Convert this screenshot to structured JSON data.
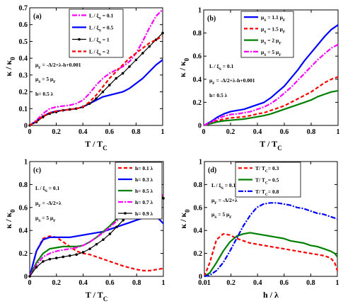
{
  "chart_data": [
    {
      "type": "line",
      "panel": "(a)",
      "xlabel": "T / T_C",
      "ylabel": "κ / κ_0",
      "xlim": [
        0,
        1
      ],
      "ylim": [
        0,
        0.7
      ],
      "xticks": [
        "0",
        "0.2",
        "0.4",
        "0.6",
        "0.8",
        "1"
      ],
      "yticks": [
        "0",
        "0.1",
        "0.2",
        "0.3",
        "0.4",
        "0.5",
        "0.6",
        "0.7"
      ],
      "legend_position": "top-center",
      "annotations": [
        "μ_F = -Δ/2+λ-h+0.001",
        "μ_S = 5 μ_F",
        "h= 0.5 λ"
      ],
      "series": [
        {
          "name": "L / ξ_S = 0.1",
          "color": "#ff00ff",
          "style": "dashdot",
          "x": [
            0,
            0.05,
            0.1,
            0.15,
            0.2,
            0.25,
            0.3,
            0.35,
            0.4,
            0.45,
            0.5,
            0.55,
            0.6,
            0.65,
            0.7,
            0.75,
            0.8,
            0.85,
            0.9,
            0.95,
            1.0
          ],
          "y": [
            0,
            0.03,
            0.07,
            0.1,
            0.11,
            0.115,
            0.12,
            0.13,
            0.15,
            0.19,
            0.24,
            0.28,
            0.31,
            0.33,
            0.35,
            0.38,
            0.43,
            0.5,
            0.58,
            0.65,
            0.69
          ]
        },
        {
          "name": "L / ξ_S = 0.5",
          "color": "#0000ff",
          "style": "solid",
          "x": [
            0,
            0.05,
            0.1,
            0.15,
            0.2,
            0.25,
            0.3,
            0.35,
            0.4,
            0.45,
            0.5,
            0.55,
            0.6,
            0.65,
            0.7,
            0.75,
            0.8,
            0.85,
            0.9,
            0.95,
            1.0
          ],
          "y": [
            0,
            0.025,
            0.055,
            0.075,
            0.085,
            0.09,
            0.095,
            0.1,
            0.11,
            0.13,
            0.15,
            0.17,
            0.18,
            0.19,
            0.2,
            0.22,
            0.25,
            0.28,
            0.32,
            0.36,
            0.39
          ]
        },
        {
          "name": "L / ξ_S = 1",
          "color": "#000000",
          "style": "solid-dots",
          "x": [
            0,
            0.05,
            0.1,
            0.15,
            0.2,
            0.25,
            0.3,
            0.35,
            0.4,
            0.45,
            0.5,
            0.55,
            0.6,
            0.65,
            0.7,
            0.75,
            0.8,
            0.85,
            0.9,
            0.95,
            1.0
          ],
          "y": [
            0,
            0.02,
            0.05,
            0.07,
            0.08,
            0.09,
            0.095,
            0.1,
            0.11,
            0.13,
            0.16,
            0.2,
            0.24,
            0.28,
            0.31,
            0.35,
            0.39,
            0.43,
            0.47,
            0.51,
            0.55
          ]
        },
        {
          "name": "L / ξ_S = 2",
          "color": "#ff0000",
          "style": "dashed",
          "x": [
            0,
            0.05,
            0.1,
            0.15,
            0.2,
            0.25,
            0.3,
            0.35,
            0.4,
            0.45,
            0.5,
            0.55,
            0.6,
            0.65,
            0.7,
            0.75,
            0.8,
            0.85,
            0.9,
            0.95,
            1.0
          ],
          "y": [
            0,
            0.025,
            0.055,
            0.075,
            0.085,
            0.09,
            0.095,
            0.1,
            0.11,
            0.14,
            0.18,
            0.23,
            0.28,
            0.32,
            0.36,
            0.4,
            0.43,
            0.46,
            0.49,
            0.51,
            0.53
          ]
        }
      ]
    },
    {
      "type": "line",
      "panel": "(b)",
      "xlabel": "T / T_C",
      "ylabel": "κ / κ_0",
      "xlim": [
        0,
        1
      ],
      "ylim": [
        0,
        1
      ],
      "xticks": [
        "0",
        "0.2",
        "0.4",
        "0.6",
        "0.8",
        "1"
      ],
      "yticks": [
        "0",
        "0.2",
        "0.4",
        "0.6",
        "0.8",
        "1"
      ],
      "legend_position": "top-center",
      "annotations": [
        "L / ξ_S = 0.1",
        "μ_F = -Δ/2+λ-h+0.001",
        "h= 0.5 λ"
      ],
      "series": [
        {
          "name": "μ_S = 1.1 μ_F",
          "color": "#0000ff",
          "style": "solid",
          "x": [
            0,
            0.05,
            0.1,
            0.15,
            0.2,
            0.25,
            0.3,
            0.35,
            0.4,
            0.45,
            0.5,
            0.55,
            0.6,
            0.65,
            0.7,
            0.75,
            0.8,
            0.85,
            0.9,
            0.95,
            1.0
          ],
          "y": [
            0,
            0.03,
            0.07,
            0.1,
            0.12,
            0.13,
            0.14,
            0.16,
            0.18,
            0.2,
            0.24,
            0.29,
            0.34,
            0.41,
            0.48,
            0.56,
            0.63,
            0.7,
            0.77,
            0.83,
            0.87
          ]
        },
        {
          "name": "μ_S = 1.5 μ_F",
          "color": "#ff0000",
          "style": "dashed",
          "x": [
            0,
            0.05,
            0.1,
            0.15,
            0.2,
            0.25,
            0.3,
            0.35,
            0.4,
            0.45,
            0.5,
            0.55,
            0.6,
            0.65,
            0.7,
            0.75,
            0.8,
            0.85,
            0.9,
            0.95,
            1.0
          ],
          "y": [
            0,
            0.02,
            0.04,
            0.055,
            0.065,
            0.07,
            0.075,
            0.085,
            0.1,
            0.11,
            0.13,
            0.15,
            0.17,
            0.2,
            0.23,
            0.26,
            0.29,
            0.33,
            0.37,
            0.4,
            0.42
          ]
        },
        {
          "name": "μ_S = 2 μ_F",
          "color": "#008000",
          "style": "solid",
          "x": [
            0,
            0.05,
            0.1,
            0.15,
            0.2,
            0.25,
            0.3,
            0.35,
            0.4,
            0.45,
            0.5,
            0.55,
            0.6,
            0.65,
            0.7,
            0.75,
            0.8,
            0.85,
            0.9,
            0.95,
            1.0
          ],
          "y": [
            0,
            0.015,
            0.03,
            0.04,
            0.045,
            0.05,
            0.055,
            0.065,
            0.075,
            0.085,
            0.1,
            0.12,
            0.14,
            0.16,
            0.18,
            0.2,
            0.22,
            0.25,
            0.27,
            0.29,
            0.3
          ]
        },
        {
          "name": "μ_S = 5 μ_F",
          "color": "#ff00ff",
          "style": "dashdot",
          "x": [
            0,
            0.05,
            0.1,
            0.15,
            0.2,
            0.25,
            0.3,
            0.35,
            0.4,
            0.45,
            0.5,
            0.55,
            0.6,
            0.65,
            0.7,
            0.75,
            0.8,
            0.85,
            0.9,
            0.95,
            1.0
          ],
          "y": [
            0,
            0.025,
            0.055,
            0.08,
            0.095,
            0.1,
            0.11,
            0.12,
            0.14,
            0.16,
            0.19,
            0.23,
            0.28,
            0.33,
            0.39,
            0.45,
            0.51,
            0.57,
            0.62,
            0.67,
            0.7
          ]
        }
      ]
    },
    {
      "type": "line",
      "panel": "(c)",
      "xlabel": "T / T_C",
      "ylabel": "κ / κ_0",
      "xlim": [
        0,
        1
      ],
      "ylim": [
        0,
        1
      ],
      "xticks": [
        "0",
        "0.2",
        "0.4",
        "0.6",
        "0.8",
        "1"
      ],
      "yticks": [
        "0",
        "0.2",
        "0.4",
        "0.6",
        "0.8",
        "1"
      ],
      "legend_position": "top-right",
      "annotations": [
        "L / ξ_S = 0.1",
        "μ_F = -Δ/2+λ",
        "μ_S = 5 μ_F"
      ],
      "series": [
        {
          "name": "h= 0.1 λ",
          "color": "#ff0000",
          "style": "dashed",
          "x": [
            0,
            0.05,
            0.1,
            0.15,
            0.2,
            0.25,
            0.3,
            0.35,
            0.4,
            0.45,
            0.5,
            0.55,
            0.6,
            0.65,
            0.7,
            0.75,
            0.8,
            0.85,
            0.9,
            0.95,
            1.0
          ],
          "y": [
            0,
            0.22,
            0.33,
            0.35,
            0.34,
            0.3,
            0.26,
            0.22,
            0.2,
            0.19,
            0.17,
            0.15,
            0.13,
            0.11,
            0.09,
            0.075,
            0.06,
            0.05,
            0.05,
            0.06,
            0.07
          ]
        },
        {
          "name": "h= 0.3 λ",
          "color": "#0000ff",
          "style": "solid",
          "x": [
            0,
            0.05,
            0.1,
            0.15,
            0.2,
            0.25,
            0.3,
            0.35,
            0.4,
            0.45,
            0.5,
            0.55,
            0.6,
            0.65,
            0.7,
            0.75,
            0.8,
            0.85,
            0.9,
            0.95,
            1.0
          ],
          "y": [
            0,
            0.22,
            0.32,
            0.34,
            0.34,
            0.34,
            0.34,
            0.35,
            0.36,
            0.37,
            0.38,
            0.39,
            0.41,
            0.43,
            0.45,
            0.47,
            0.49,
            0.51,
            0.52,
            0.52,
            0.46
          ]
        },
        {
          "name": "h= 0.5 λ",
          "color": "#008000",
          "style": "solid",
          "x": [
            0,
            0.05,
            0.1,
            0.15,
            0.2,
            0.25,
            0.3,
            0.35,
            0.4,
            0.45,
            0.5,
            0.55,
            0.6,
            0.65,
            0.7,
            0.75,
            0.8,
            0.85,
            0.9,
            0.95,
            1.0
          ],
          "y": [
            0,
            0.12,
            0.2,
            0.24,
            0.25,
            0.26,
            0.26,
            0.26,
            0.27,
            0.3,
            0.34,
            0.39,
            0.44,
            0.5,
            0.56,
            0.62,
            0.66,
            0.7,
            0.73,
            0.73,
            0.69
          ]
        },
        {
          "name": "h= 0.7 λ",
          "color": "#ff00ff",
          "style": "dashdot",
          "x": [
            0,
            0.05,
            0.1,
            0.15,
            0.2,
            0.25,
            0.3,
            0.35,
            0.4,
            0.45,
            0.5,
            0.55,
            0.6,
            0.65,
            0.7,
            0.75,
            0.8,
            0.85,
            0.9,
            0.95,
            1.0
          ],
          "y": [
            0,
            0.1,
            0.17,
            0.2,
            0.22,
            0.23,
            0.24,
            0.25,
            0.27,
            0.3,
            0.34,
            0.38,
            0.43,
            0.48,
            0.54,
            0.6,
            0.65,
            0.7,
            0.74,
            0.75,
            0.7
          ]
        },
        {
          "name": "h= 0.9 λ",
          "color": "#000000",
          "style": "solid-dots",
          "x": [
            0,
            0.05,
            0.1,
            0.15,
            0.2,
            0.25,
            0.3,
            0.35,
            0.4,
            0.45,
            0.5,
            0.55,
            0.6,
            0.65,
            0.7,
            0.75,
            0.8,
            0.85,
            0.9,
            0.95,
            1.0
          ],
          "y": [
            0,
            0.08,
            0.13,
            0.15,
            0.16,
            0.17,
            0.18,
            0.19,
            0.21,
            0.24,
            0.28,
            0.32,
            0.37,
            0.43,
            0.49,
            0.55,
            0.6,
            0.65,
            0.69,
            0.71,
            0.68
          ]
        }
      ]
    },
    {
      "type": "line",
      "panel": "(d)",
      "xlabel": "h / λ",
      "ylabel": "κ / κ_0",
      "xlim": [
        0.01,
        1
      ],
      "ylim": [
        0,
        1
      ],
      "xticks": [
        "0.01",
        "0.2",
        "0.4",
        "0.6",
        "0.8",
        "1"
      ],
      "yticks": [
        "0",
        "0.2",
        "0.4",
        "0.6",
        "0.8",
        "1"
      ],
      "legend_position": "top-right",
      "annotations": [
        "L / ξ_S = 0.1",
        "μ_F = -Δ/2+λ",
        "μ_S = 5 μ_F"
      ],
      "series": [
        {
          "name": "T/ T_C= 0.3",
          "color": "#ff0000",
          "style": "dashed",
          "x": [
            0.01,
            0.05,
            0.1,
            0.15,
            0.2,
            0.25,
            0.3,
            0.35,
            0.4,
            0.45,
            0.5,
            0.55,
            0.6,
            0.65,
            0.7,
            0.75,
            0.8,
            0.85,
            0.9,
            0.95,
            0.98,
            1.0
          ],
          "y": [
            0,
            0.12,
            0.32,
            0.37,
            0.36,
            0.33,
            0.31,
            0.29,
            0.28,
            0.27,
            0.26,
            0.25,
            0.24,
            0.23,
            0.22,
            0.21,
            0.2,
            0.19,
            0.18,
            0.16,
            0.12,
            0.05
          ]
        },
        {
          "name": "T/ T_C= 0.5",
          "color": "#008000",
          "style": "solid",
          "x": [
            0.01,
            0.05,
            0.1,
            0.15,
            0.2,
            0.25,
            0.3,
            0.35,
            0.4,
            0.45,
            0.5,
            0.55,
            0.6,
            0.65,
            0.7,
            0.75,
            0.8,
            0.85,
            0.9,
            0.95,
            0.98,
            1.0
          ],
          "y": [
            0,
            0.03,
            0.12,
            0.22,
            0.3,
            0.35,
            0.37,
            0.38,
            0.37,
            0.36,
            0.35,
            0.34,
            0.33,
            0.31,
            0.3,
            0.29,
            0.27,
            0.26,
            0.24,
            0.22,
            0.2,
            0.17
          ]
        },
        {
          "name": "T/ T_C= 0.8",
          "color": "#0000ff",
          "style": "dashdot",
          "x": [
            0.01,
            0.05,
            0.1,
            0.15,
            0.2,
            0.25,
            0.3,
            0.35,
            0.4,
            0.45,
            0.5,
            0.55,
            0.6,
            0.65,
            0.7,
            0.75,
            0.8,
            0.85,
            0.9,
            0.95,
            1.0
          ],
          "y": [
            0,
            0.01,
            0.05,
            0.12,
            0.22,
            0.33,
            0.44,
            0.53,
            0.6,
            0.63,
            0.64,
            0.64,
            0.63,
            0.62,
            0.6,
            0.59,
            0.57,
            0.55,
            0.54,
            0.52,
            0.5
          ]
        }
      ]
    }
  ]
}
